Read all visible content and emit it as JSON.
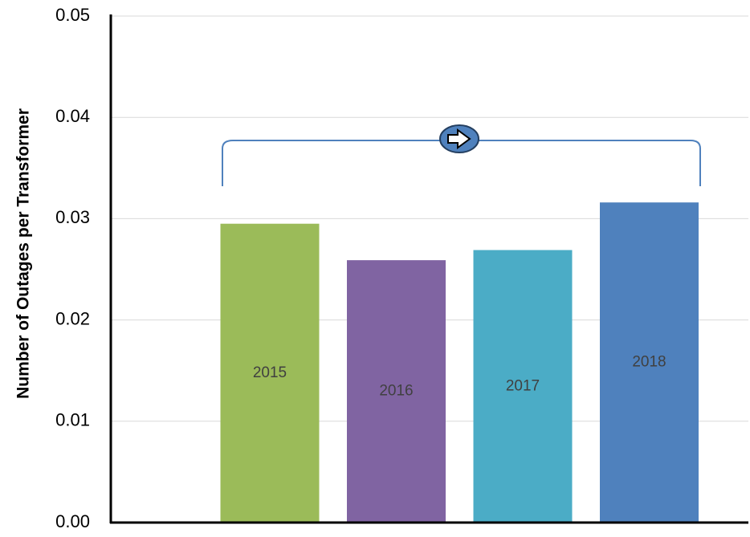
{
  "chart_data": {
    "type": "bar",
    "y_label": "Number of Outages per Transformer",
    "categories": [
      "2015",
      "2016",
      "2017",
      "2018"
    ],
    "values": [
      0.0295,
      0.0259,
      0.0269,
      0.0316
    ],
    "colors": [
      "#9bbb59",
      "#8064a2",
      "#4bacc6",
      "#4f81bd"
    ],
    "ylim": [
      0,
      0.05
    ],
    "yticks": [
      {
        "value": 0,
        "label": "0.00"
      },
      0.01,
      0.02,
      0.03,
      0.04,
      0.05
    ],
    "grid": true
  }
}
